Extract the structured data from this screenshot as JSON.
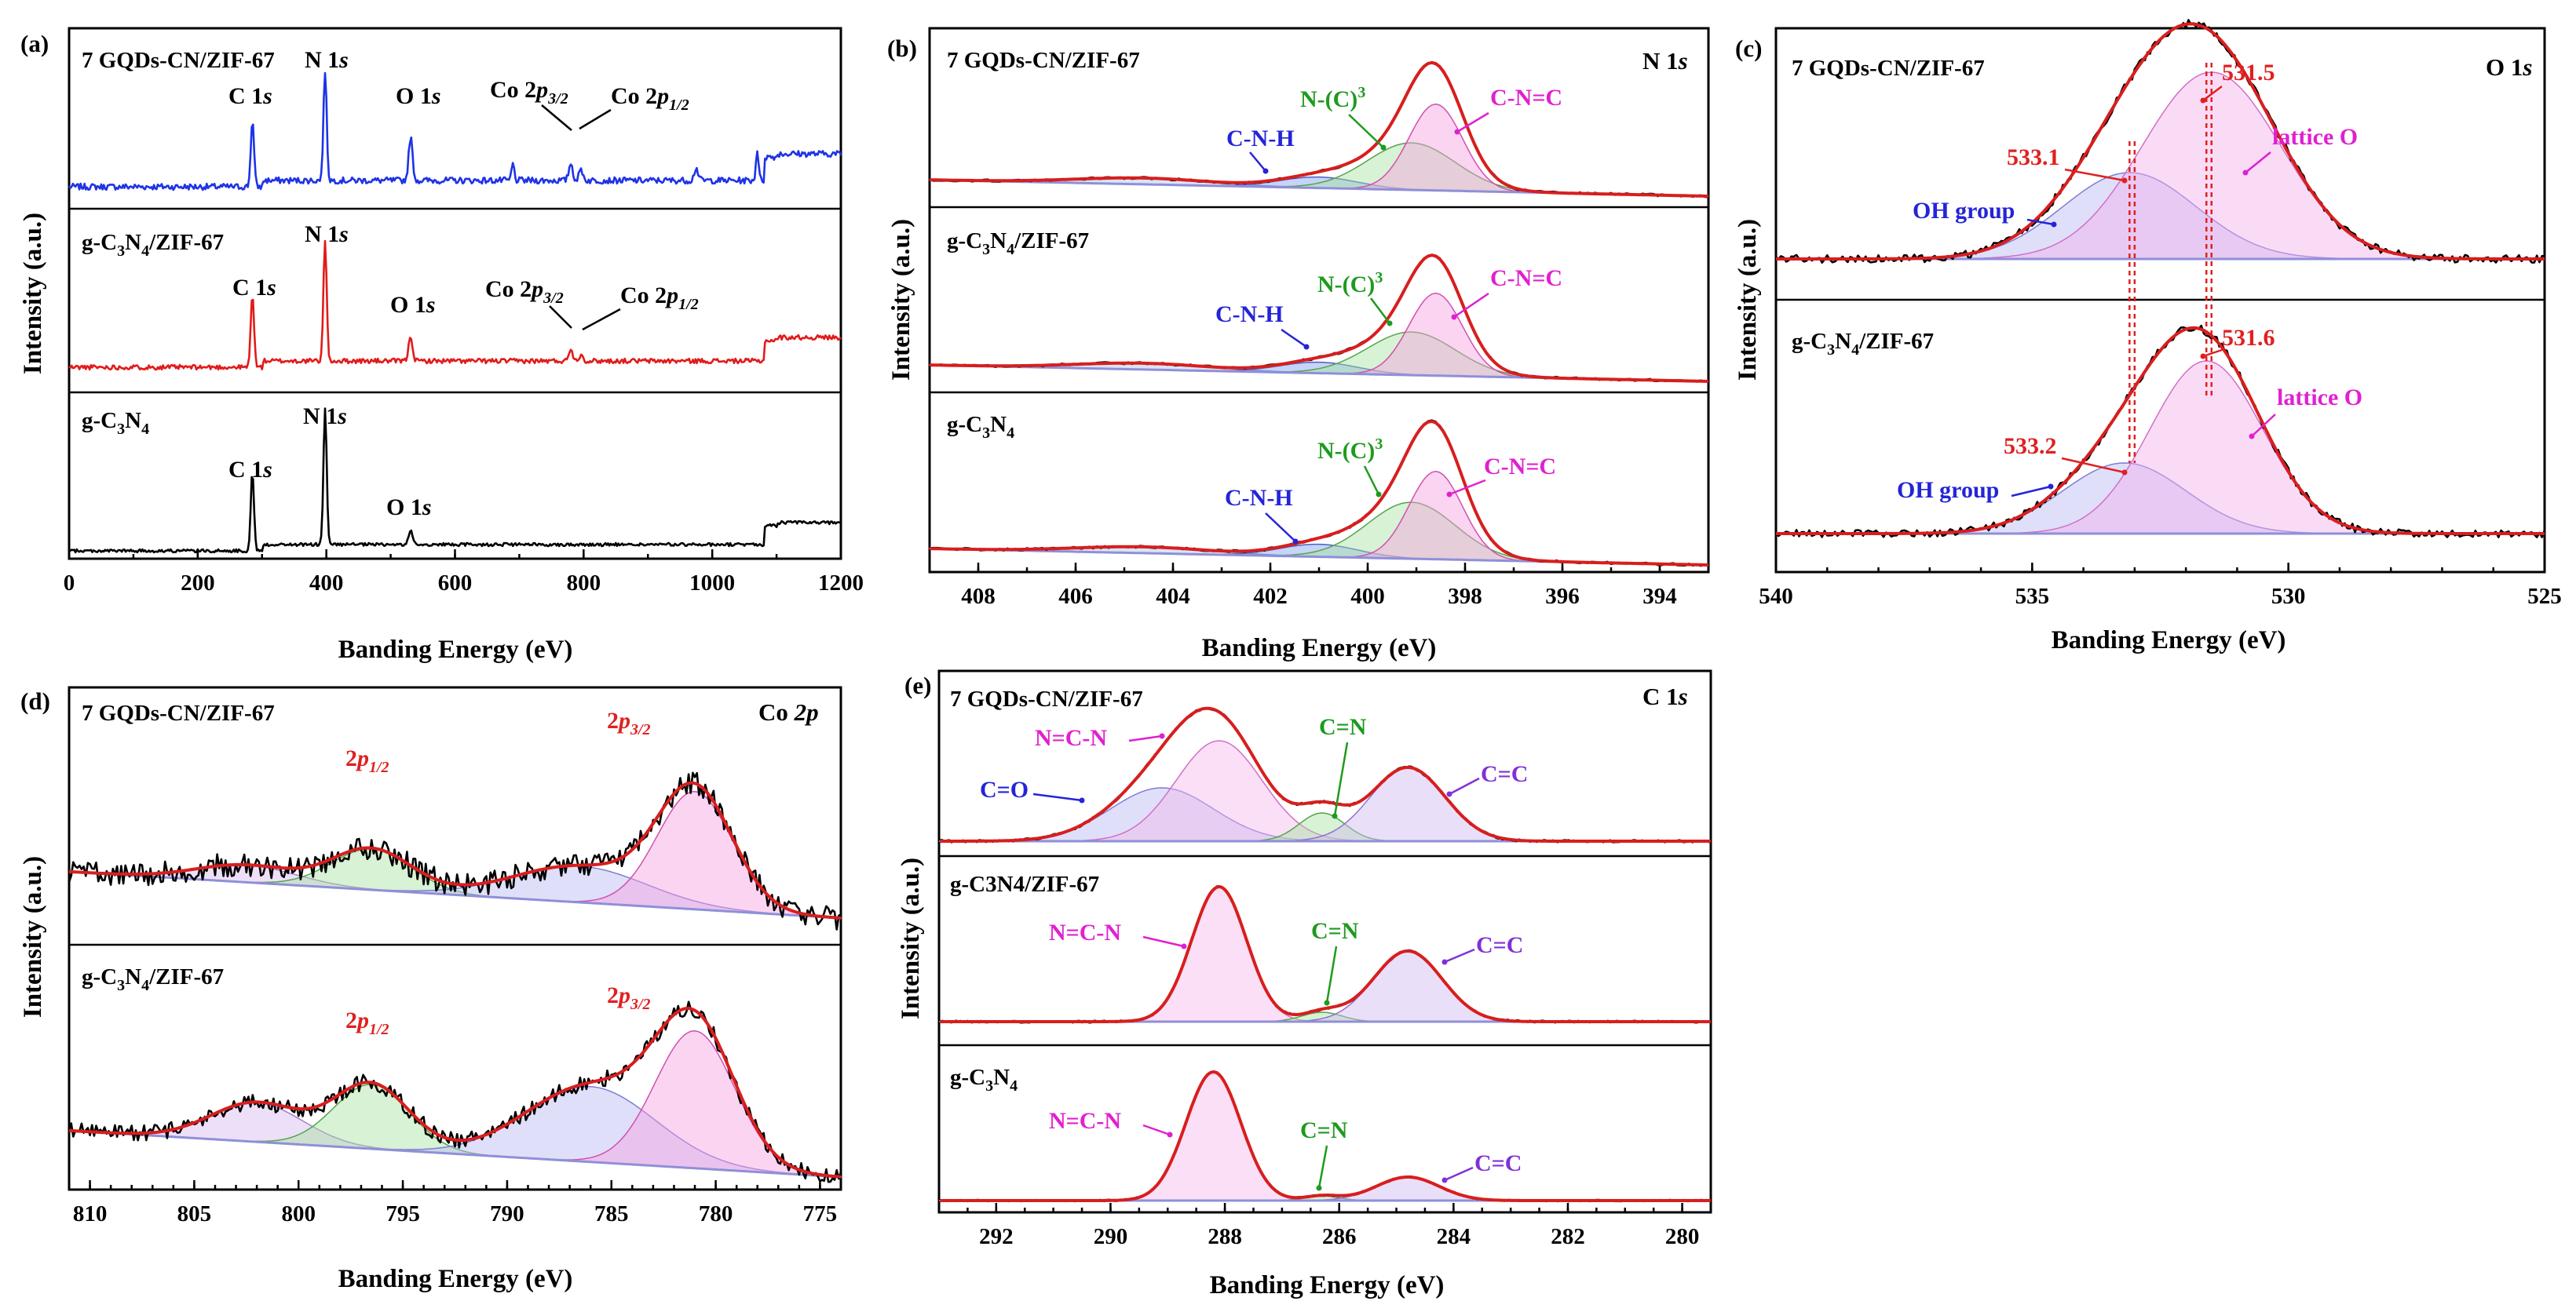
{
  "chart_data": [
    {
      "panel": "(a)",
      "type": "line",
      "title": "",
      "xlabel": "Banding Energy (eV)",
      "ylabel": "Intensity (a.u.)",
      "xlim": [
        0,
        1200
      ],
      "xticks": [
        "0",
        "200",
        "400",
        "600",
        "800",
        "1000",
        "1200"
      ],
      "series": [
        {
          "name": "7 GQDs-CN/ZIF-67",
          "color": "#1f33e6",
          "peaks": [
            {
              "label": "C 1s",
              "x": 285
            },
            {
              "label": "N 1s",
              "x": 398
            },
            {
              "label": "O 1s",
              "x": 531
            },
            {
              "label": "Co 2p3/2",
              "x": 780
            },
            {
              "label": "Co 2p1/2",
              "x": 796
            }
          ]
        },
        {
          "name": "g-C3N4/ZIF-67",
          "color": "#e21b1b",
          "peaks": [
            {
              "label": "C 1s",
              "x": 285
            },
            {
              "label": "N 1s",
              "x": 398
            },
            {
              "label": "O 1s",
              "x": 531
            },
            {
              "label": "Co 2p3/2",
              "x": 780
            },
            {
              "label": "Co 2p1/2",
              "x": 796
            }
          ]
        },
        {
          "name": "g-C3N4",
          "color": "#000000",
          "peaks": [
            {
              "label": "C 1s",
              "x": 285
            },
            {
              "label": "N 1s",
              "x": 398
            },
            {
              "label": "O 1s",
              "x": 531
            }
          ]
        }
      ],
      "labels": {
        "s1": "7 GQDs-CN/ZIF-67",
        "s2": "g-C",
        "s3": "g-C",
        "c1s": "C 1",
        "n1s": "N 1",
        "o1s": "O 1",
        "co": "Co 2",
        "s": "s",
        "p": "p",
        "sub32": "3/2",
        "sub12": "1/2",
        "sub3": "3",
        "sub4": "4",
        "mid": "N",
        "tail": "/ZIF-67"
      }
    },
    {
      "panel": "(b)",
      "type": "line",
      "region": "N 1s",
      "xlabel": "Banding Energy (eV)",
      "ylabel": "Intensity (a.u.)",
      "xlim": [
        409,
        393
      ],
      "xticks": [
        "408",
        "406",
        "404",
        "402",
        "400",
        "398",
        "396",
        "394"
      ],
      "series": [
        {
          "name": "7 GQDs-CN/ZIF-67",
          "components": [
            {
              "label": "C-N-H",
              "x": 401.0
            },
            {
              "label": "N-(C)3",
              "x": 399.1
            },
            {
              "label": "C-N=C",
              "x": 398.6
            }
          ]
        },
        {
          "name": "g-C3N4/ZIF-67",
          "components": [
            {
              "label": "C-N-H",
              "x": 401.0
            },
            {
              "label": "N-(C)3",
              "x": 399.1
            },
            {
              "label": "C-N=C",
              "x": 398.6
            }
          ]
        },
        {
          "name": "g-C3N4",
          "components": [
            {
              "label": "C-N-H",
              "x": 401.0
            },
            {
              "label": "N-(C)3",
              "x": 399.1
            },
            {
              "label": "C-N=C",
              "x": 398.6
            }
          ]
        }
      ],
      "labels": {
        "cnh": "C-N-H",
        "nc": "N-(C)",
        "cnc": "C-N=C",
        "sup3": "3",
        "region_n": "N 1",
        "s": "s"
      }
    },
    {
      "panel": "(c)",
      "type": "line",
      "region": "O 1s",
      "xlabel": "Banding Energy (eV)",
      "ylabel": "Intensity (a.u.)",
      "xlim": [
        540,
        525
      ],
      "xticks": [
        "540",
        "535",
        "530",
        "525"
      ],
      "series": [
        {
          "name": "7 GQDs-CN/ZIF-67",
          "components": [
            {
              "label": "OH group",
              "x": 533.1
            },
            {
              "label": "lattice O",
              "x": 531.5
            }
          ]
        },
        {
          "name": "g-C3N4/ZIF-67",
          "components": [
            {
              "label": "OH group",
              "x": 533.2
            },
            {
              "label": "lattice O",
              "x": 531.6
            }
          ]
        }
      ],
      "labels": {
        "p1": "531.5",
        "p2": "533.1",
        "p3": "531.6",
        "p4": "533.2",
        "oh": "OH group",
        "lat": "lattice O",
        "region_o": "O 1",
        "s": "s"
      }
    },
    {
      "panel": "(d)",
      "type": "line",
      "region": "Co 2p",
      "xlabel": "Banding Energy (eV)",
      "ylabel": "Intensity (a.u.)",
      "xlim": [
        811,
        774
      ],
      "xticks": [
        "810",
        "805",
        "800",
        "795",
        "790",
        "785",
        "780",
        "775"
      ],
      "series": [
        {
          "name": "7 GQDs-CN/ZIF-67",
          "components": [
            {
              "label": "2p1/2",
              "x": 796.5
            },
            {
              "label": "2p3/2",
              "x": 781.0
            }
          ]
        },
        {
          "name": "g-C3N4/ZIF-67",
          "components": [
            {
              "label": "2p1/2",
              "x": 796.5
            },
            {
              "label": "2p3/2",
              "x": 781.0
            }
          ]
        }
      ],
      "labels": {
        "two": "2",
        "p": "p",
        "sub12": "1/2",
        "sub32": "3/2",
        "region_co": "Co ",
        "region_2p": "2p"
      }
    },
    {
      "panel": "(e)",
      "type": "line",
      "region": "C 1s",
      "xlabel": "Banding Energy (eV)",
      "ylabel": "Intensity (a.u.)",
      "xlim": [
        293,
        279.5
      ],
      "xticks": [
        "292",
        "290",
        "288",
        "286",
        "284",
        "282",
        "280"
      ],
      "series": [
        {
          "name": "7 GQDs-CN/ZIF-67",
          "components": [
            {
              "label": "C=O",
              "x": 289.1
            },
            {
              "label": "N=C-N",
              "x": 288.1
            },
            {
              "label": "C=N",
              "x": 286.3
            },
            {
              "label": "C=C",
              "x": 284.8
            }
          ]
        },
        {
          "name": "g-C3N4/ZIF-67",
          "components": [
            {
              "label": "N=C-N",
              "x": 288.1
            },
            {
              "label": "C=N",
              "x": 286.3
            },
            {
              "label": "C=C",
              "x": 284.8
            }
          ]
        },
        {
          "name": "g-C3N4",
          "components": [
            {
              "label": "N=C-N",
              "x": 288.2
            },
            {
              "label": "C=N",
              "x": 286.3
            },
            {
              "label": "C=C",
              "x": 284.8
            }
          ]
        }
      ],
      "labels": {
        "co": "C=O",
        "ncn": "N=C-N",
        "cn": "C=N",
        "cc": "C=C",
        "region_c": "C 1",
        "s": "s"
      }
    }
  ]
}
